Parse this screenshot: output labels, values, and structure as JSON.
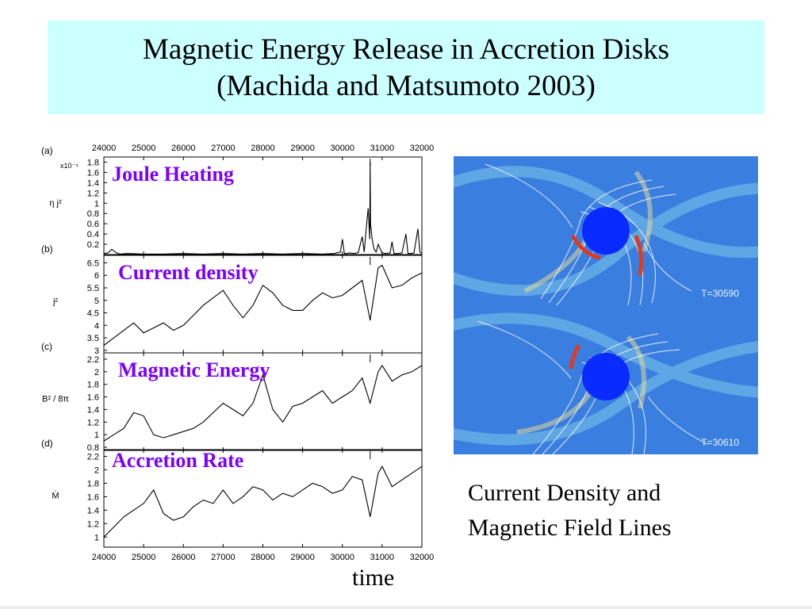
{
  "slide": {
    "title_line1": "Magnetic Energy Release in Accretion Disks",
    "title_line2": "(Machida and Matsumoto 2003)",
    "caption_line1": "Current Density and",
    "caption_line2": "Magnetic Field Lines",
    "time_label": "time"
  },
  "images": [
    {
      "label": "T=30590",
      "icon": "accretion-disk-simulation"
    },
    {
      "label": "T=30610",
      "icon": "accretion-disk-simulation"
    }
  ],
  "colors": {
    "title_bg": "#ccffff",
    "panel_heading": "#7a00ff",
    "trace": "#000000",
    "sim_background": "#2f6fd6",
    "sim_core": "#0a2bff",
    "sim_hot": "#e23a1e"
  },
  "chart_data": [
    {
      "type": "line",
      "panel": "(a)",
      "heading": "Joule Heating",
      "ylabel": "η j²",
      "scale_note": "x10⁻⁴",
      "xlim": [
        24000,
        32000
      ],
      "xticks_top": [
        "24000",
        "25000",
        "26000",
        "27000",
        "28000",
        "29000",
        "30000",
        "31000",
        "32000"
      ],
      "ylim": [
        0,
        1.9
      ],
      "yticks": [
        "0.2",
        "0.4",
        "0.6",
        "0.8",
        "1",
        "1.2",
        "1.4",
        "1.6",
        "1.8"
      ],
      "arrow_at": 30700,
      "x": [
        24000,
        24100,
        24200,
        24300,
        24400,
        24600,
        25000,
        25500,
        26000,
        26500,
        27000,
        27500,
        28000,
        28500,
        29000,
        29500,
        29800,
        29950,
        30000,
        30050,
        30100,
        30200,
        30300,
        30400,
        30500,
        30550,
        30600,
        30650,
        30690,
        30700,
        30710,
        30750,
        30800,
        30850,
        30900,
        31000,
        31100,
        31200,
        31250,
        31300,
        31400,
        31500,
        31600,
        31650,
        31700,
        31800,
        31900,
        31950,
        32000
      ],
      "values": [
        0.02,
        0.03,
        0.1,
        0.04,
        0.01,
        0.02,
        0.01,
        0.01,
        0.02,
        0.01,
        0.02,
        0.01,
        0.02,
        0.01,
        0.02,
        0.01,
        0.02,
        0.05,
        0.3,
        0.02,
        0.02,
        0.03,
        0.02,
        0.04,
        0.35,
        0.05,
        0.5,
        0.9,
        0.3,
        1.8,
        0.6,
        0.3,
        0.1,
        0.05,
        0.2,
        0.03,
        0.02,
        0.03,
        0.25,
        0.02,
        0.02,
        0.03,
        0.4,
        0.02,
        0.02,
        0.03,
        0.5,
        0.05,
        0.02
      ]
    },
    {
      "type": "line",
      "panel": "(b)",
      "heading": "Current density",
      "ylabel": "j²",
      "xlim": [
        24000,
        32000
      ],
      "ylim": [
        2.9,
        6.8
      ],
      "yticks": [
        "3",
        "3.5",
        "4",
        "4.5",
        "5",
        "5.5",
        "6",
        "6.5"
      ],
      "arrow_at": 30700,
      "x": [
        24000,
        24250,
        24500,
        24750,
        25000,
        25250,
        25500,
        25750,
        26000,
        26250,
        26500,
        26750,
        27000,
        27250,
        27500,
        27750,
        28000,
        28250,
        28500,
        28750,
        29000,
        29250,
        29500,
        29750,
        30000,
        30250,
        30500,
        30700,
        30900,
        31000,
        31250,
        31500,
        31750,
        32000
      ],
      "values": [
        3.2,
        3.5,
        3.8,
        4.1,
        3.7,
        3.9,
        4.1,
        3.8,
        4.0,
        4.4,
        4.8,
        5.1,
        5.4,
        4.8,
        4.3,
        4.8,
        5.6,
        5.3,
        4.8,
        4.6,
        4.6,
        5.0,
        5.3,
        5.1,
        5.2,
        5.5,
        5.8,
        4.2,
        6.3,
        6.4,
        5.5,
        5.6,
        5.9,
        6.1
      ]
    },
    {
      "type": "line",
      "panel": "(c)",
      "heading": "Magnetic Energy",
      "ylabel": "B² / 8π",
      "xlim": [
        24000,
        32000
      ],
      "ylim": [
        0.75,
        2.3
      ],
      "yticks": [
        "0.8",
        "1",
        "1.2",
        "1.4",
        "1.6",
        "1.8",
        "2",
        "2.2"
      ],
      "arrow_at": 30700,
      "x": [
        24000,
        24250,
        24500,
        24750,
        25000,
        25250,
        25500,
        25750,
        26000,
        26250,
        26500,
        26750,
        27000,
        27250,
        27500,
        27750,
        28000,
        28250,
        28500,
        28750,
        29000,
        29250,
        29500,
        29750,
        30000,
        30250,
        30500,
        30700,
        30900,
        31000,
        31250,
        31500,
        31750,
        32000
      ],
      "values": [
        0.9,
        1.0,
        1.1,
        1.35,
        1.3,
        1.0,
        0.95,
        1.0,
        1.05,
        1.1,
        1.2,
        1.35,
        1.5,
        1.4,
        1.3,
        1.5,
        1.95,
        1.4,
        1.2,
        1.45,
        1.5,
        1.6,
        1.7,
        1.5,
        1.6,
        1.7,
        1.9,
        1.5,
        2.0,
        2.1,
        1.85,
        1.95,
        2.0,
        2.1
      ]
    },
    {
      "type": "line",
      "panel": "(d)",
      "heading": "Accretion Rate",
      "ylabel": "Ṁ",
      "xlim": [
        24000,
        32000
      ],
      "xticks": [
        "24000",
        "25000",
        "26000",
        "27000",
        "28000",
        "29000",
        "30000",
        "31000",
        "32000"
      ],
      "ylim": [
        0.85,
        2.3
      ],
      "yticks": [
        "1",
        "1.2",
        "1.4",
        "1.6",
        "1.8",
        "2",
        "2.2"
      ],
      "arrow_at": 30700,
      "x": [
        24000,
        24250,
        24500,
        24750,
        25000,
        25250,
        25500,
        25750,
        26000,
        26250,
        26500,
        26750,
        27000,
        27250,
        27500,
        27750,
        28000,
        28250,
        28500,
        28750,
        29000,
        29250,
        29500,
        29750,
        30000,
        30250,
        30500,
        30700,
        30900,
        31000,
        31250,
        31500,
        31750,
        32000
      ],
      "values": [
        1.0,
        1.15,
        1.3,
        1.4,
        1.5,
        1.7,
        1.35,
        1.25,
        1.3,
        1.45,
        1.55,
        1.5,
        1.7,
        1.5,
        1.6,
        1.75,
        1.7,
        1.55,
        1.65,
        1.6,
        1.7,
        1.8,
        1.75,
        1.65,
        1.7,
        1.9,
        1.85,
        1.3,
        1.95,
        2.05,
        1.75,
        1.85,
        1.95,
        2.05
      ]
    }
  ]
}
